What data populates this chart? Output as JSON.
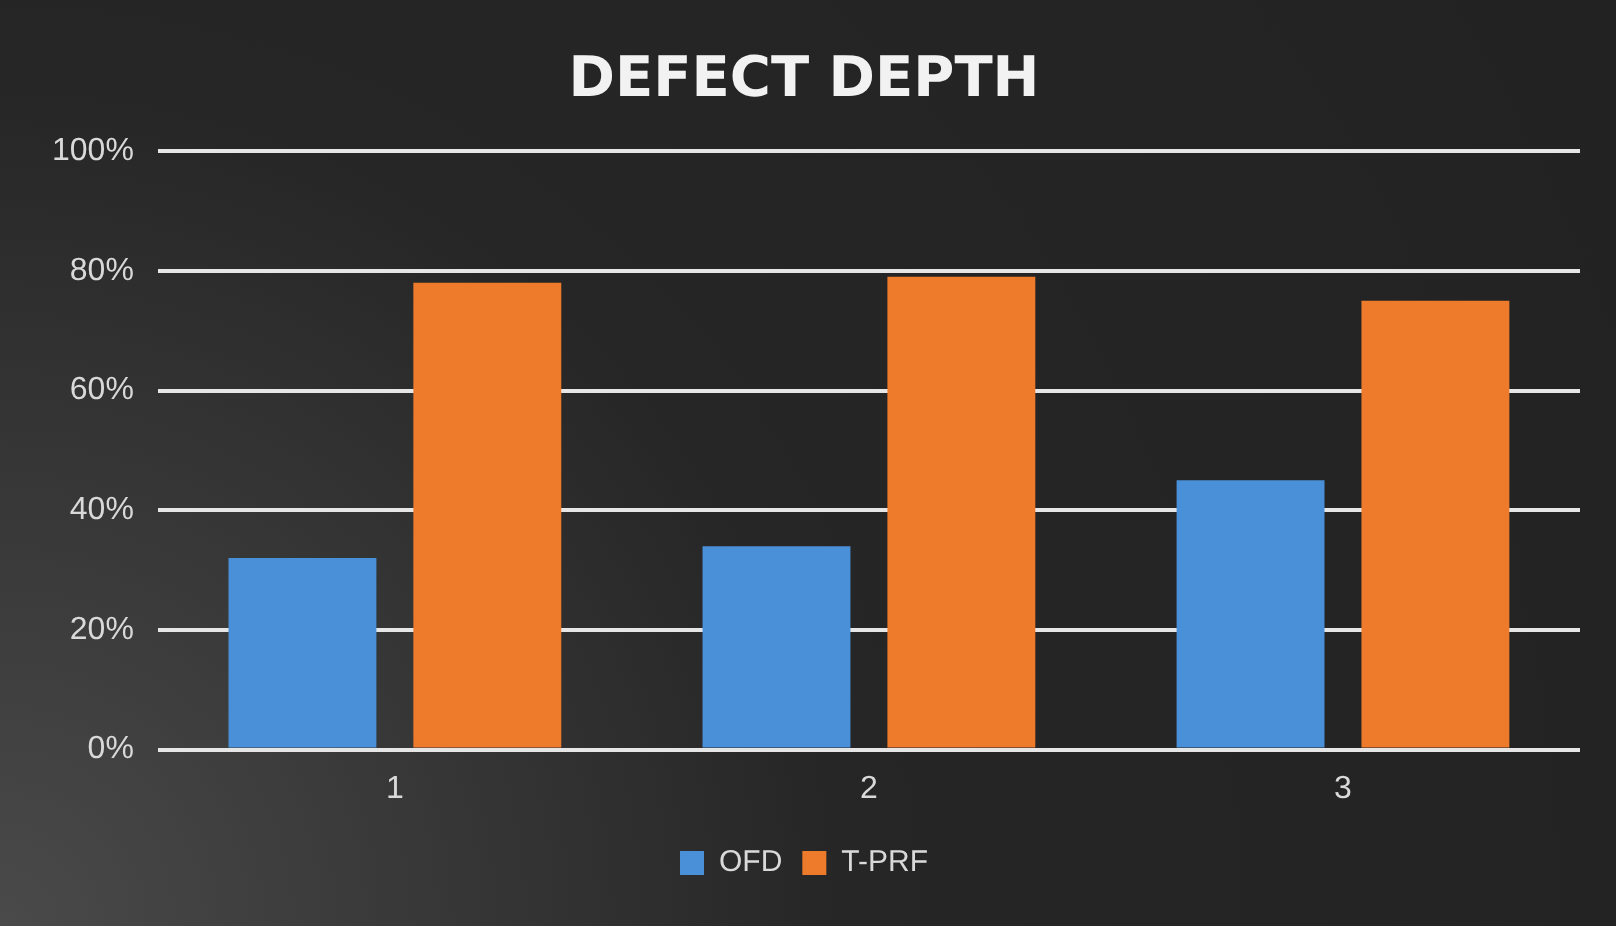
{
  "chart_data": {
    "type": "bar",
    "title": "DEFECT DEPTH",
    "categories": [
      "1",
      "2",
      "3"
    ],
    "series": [
      {
        "name": "OFD",
        "color": "#4a90d9",
        "values": [
          32,
          34,
          45
        ]
      },
      {
        "name": "T-PRF",
        "color": "#ee7b2c",
        "values": [
          78,
          79,
          75
        ]
      }
    ],
    "ylim": [
      0,
      100
    ],
    "yticks": [
      {
        "value": 0,
        "label": "0%"
      },
      {
        "value": 20,
        "label": "20%"
      },
      {
        "value": 40,
        "label": "40%"
      },
      {
        "value": 60,
        "label": "60%"
      },
      {
        "value": 80,
        "label": "80%"
      },
      {
        "value": 100,
        "label": "100%"
      }
    ],
    "grid": "y",
    "legend": "bottom"
  }
}
